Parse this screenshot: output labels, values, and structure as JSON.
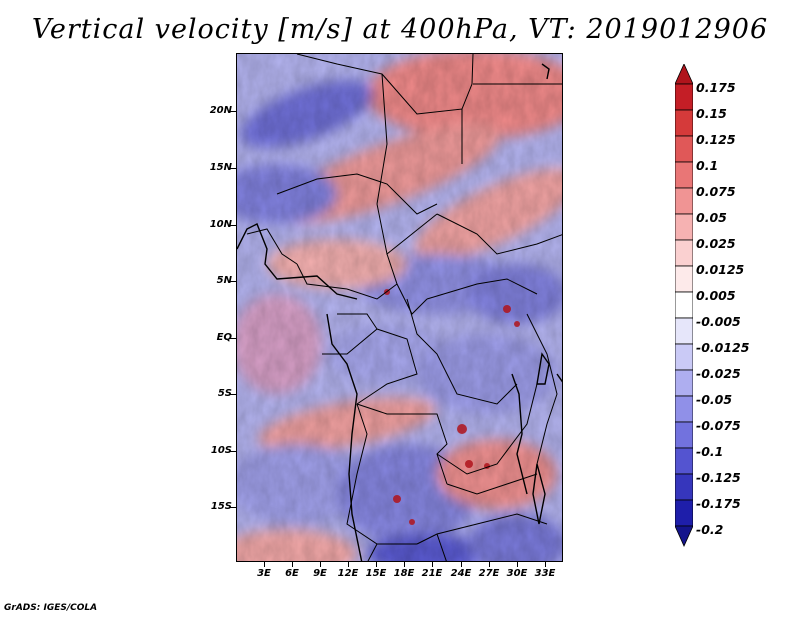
{
  "title": "Vertical velocity [m/s] at 400hPa, VT: 2019012906",
  "credit": "GrADS: IGES/COLA",
  "map": {
    "variable": "Vertical velocity",
    "units": "m/s",
    "level": "400hPa",
    "valid_time": "2019012906",
    "region": "Central Africa",
    "lon_range": [
      0,
      35
    ],
    "lat_range": [
      -20,
      24
    ],
    "y_axis_labels": [
      "20N",
      "15N",
      "10N",
      "5N",
      "EQ",
      "5S",
      "10S",
      "15S"
    ],
    "x_axis_labels": [
      "3E",
      "6E",
      "9E",
      "12E",
      "15E",
      "18E",
      "21E",
      "24E",
      "27E",
      "30E",
      "33E"
    ]
  },
  "colorbar": {
    "labels": [
      "0.175",
      "0.15",
      "0.125",
      "0.1",
      "0.075",
      "0.05",
      "0.025",
      "0.0125",
      "0.005",
      "-0.005",
      "-0.0125",
      "-0.025",
      "-0.05",
      "-0.075",
      "-0.1",
      "-0.125",
      "-0.175",
      "-0.2"
    ],
    "colors": [
      "#b0141c",
      "#c41e26",
      "#d53a3a",
      "#e05858",
      "#e97676",
      "#f09494",
      "#f6b2b2",
      "#fad0d0",
      "#fdeaea",
      "#ffffff",
      "#e6e6fa",
      "#cacaf6",
      "#aeaef0",
      "#9090e8",
      "#7272de",
      "#5454d0",
      "#3636bc",
      "#1e1eaa",
      "#14148c"
    ]
  }
}
